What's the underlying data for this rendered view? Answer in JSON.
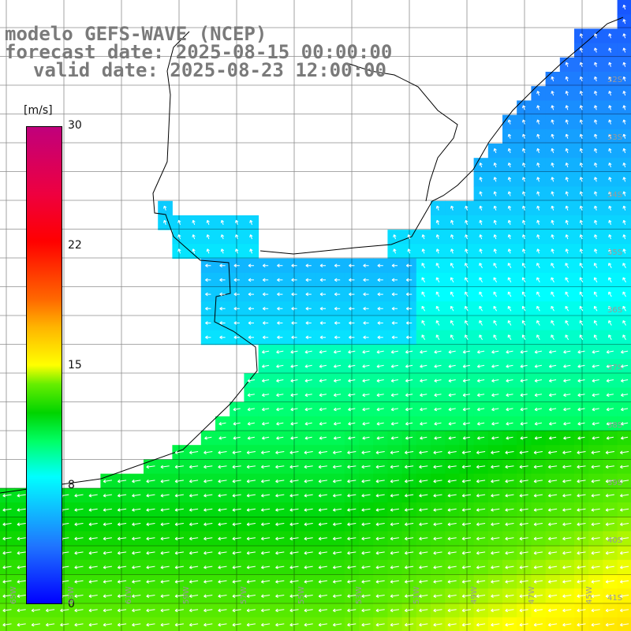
{
  "title": {
    "line1": "modelo GEFS-WAVE (NCEP)",
    "line2": "forecast date: 2025-08-15 00:00:00",
    "line3": "valid date: 2025-08-23 12:00:00"
  },
  "colorbar": {
    "unit": "[m/s]",
    "min": 0,
    "max": 30,
    "ticks": [
      "30",
      "22",
      "15",
      "8",
      "0"
    ],
    "tick_values": [
      30,
      22,
      15,
      8,
      0
    ],
    "colors": {
      "low": "#0000ff",
      "cyan": "#00ffff",
      "green": "#00d400",
      "yellow": "#ffff00",
      "red": "#ff0000",
      "high": "#c0007c"
    }
  },
  "map": {
    "lat_labels": [
      "32S",
      "33S",
      "34S",
      "35S",
      "36S",
      "37S",
      "38S",
      "39S",
      "40S",
      "41S"
    ],
    "lat_values": [
      -32,
      -33,
      -34,
      -35,
      -36,
      -37,
      -38,
      -39,
      -40,
      -41
    ],
    "lon_labels": [
      "65W",
      "63W",
      "61W",
      "59W",
      "57W",
      "55W",
      "53W",
      "51W",
      "49W",
      "47W",
      "45W"
    ],
    "lon_values": [
      -65,
      -63,
      -61,
      -59,
      -57,
      -55,
      -53,
      -51,
      -49,
      -47,
      -45
    ],
    "grid_color": "#000000",
    "land_color": "#ffffff",
    "arrow_color": "#ffffff"
  }
}
